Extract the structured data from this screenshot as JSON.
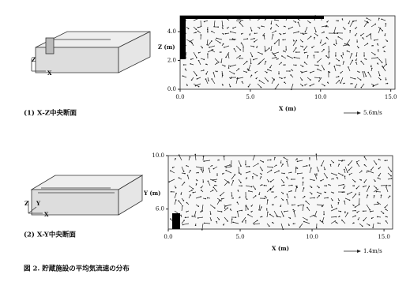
{
  "figures": [
    {
      "caption": "(1) X-Z中央断面",
      "xlabel": "X (m)",
      "ylabel": "Z (m)",
      "scale_label": "5.6m/s",
      "axis_letters": [
        "Z",
        "X"
      ],
      "xlim": [
        0,
        15.3
      ],
      "ylim": [
        0,
        5.1
      ],
      "xticks": [
        {
          "value": 0,
          "label": "0.0"
        },
        {
          "value": 5,
          "label": "5.0"
        },
        {
          "value": 10,
          "label": "10.0"
        },
        {
          "value": 15,
          "label": "15.0"
        }
      ],
      "yticks": [
        {
          "value": 0,
          "label": "0.0"
        },
        {
          "value": 2,
          "label": "2.0"
        },
        {
          "value": 4,
          "label": "4.0"
        }
      ]
    },
    {
      "caption": "(2) X-Y中央断面",
      "xlabel": "X (m)",
      "ylabel": "Y (m)",
      "scale_label": "1.4m/s",
      "axis_letters": [
        "Z",
        "Y",
        "X"
      ],
      "xlim": [
        0,
        15.6
      ],
      "ylim": [
        4.5,
        10
      ],
      "xticks": [
        {
          "value": 0,
          "label": "0.0"
        },
        {
          "value": 5,
          "label": "5.0"
        },
        {
          "value": 10,
          "label": "10.0"
        },
        {
          "value": 15,
          "label": "15.0"
        }
      ],
      "yticks": [
        {
          "value": 6,
          "label": "6.0"
        },
        {
          "value": 10,
          "label": "10.0"
        }
      ]
    }
  ],
  "figure_caption": "図 2. 貯蔵施設の平均気流速の分布"
}
